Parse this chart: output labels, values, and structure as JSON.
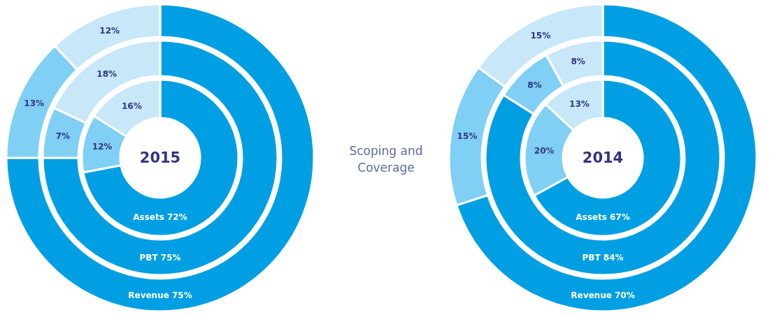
{
  "chart_data": [
    {
      "type": "donut",
      "title": "2015",
      "categories": [
        null,
        null,
        null
      ],
      "colors": [
        "#009fe3",
        "#80cff4",
        "#c8e7f9"
      ],
      "series": [
        {
          "name": "Assets",
          "values": [
            72,
            12,
            16
          ],
          "value_labels": [
            "72%",
            "12%",
            "16%"
          ]
        },
        {
          "name": "PBT",
          "values": [
            75,
            7,
            18
          ],
          "value_labels": [
            "75%",
            "7%",
            "18%"
          ]
        },
        {
          "name": "Revenue",
          "values": [
            75,
            13,
            12
          ],
          "value_labels": [
            "75%",
            "13%",
            "12%"
          ]
        }
      ]
    },
    {
      "type": "other",
      "title": "Scoping and Coverage"
    },
    {
      "type": "donut",
      "title": "2014",
      "categories": [
        null,
        null,
        null
      ],
      "colors": [
        "#009fe3",
        "#80cff4",
        "#c8e7f9"
      ],
      "series": [
        {
          "name": "Assets",
          "values": [
            67,
            20,
            13
          ],
          "value_labels": [
            "67%",
            "20%",
            "13%"
          ]
        },
        {
          "name": "PBT",
          "values": [
            84,
            8,
            8
          ],
          "value_labels": [
            "84%",
            "8%",
            "8%"
          ]
        },
        {
          "name": "Revenue",
          "values": [
            70,
            15,
            15
          ],
          "value_labels": [
            "70%",
            "15%",
            "15%"
          ]
        }
      ]
    }
  ]
}
